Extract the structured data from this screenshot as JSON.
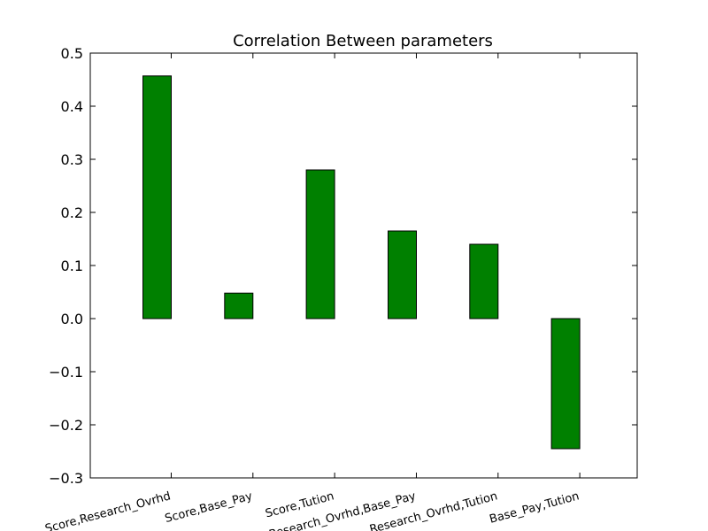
{
  "chart_data": {
    "type": "bar",
    "title": "Correlation Between parameters",
    "xlabel": "",
    "ylabel": "",
    "categories": [
      "Score,Research_Ovrhd",
      "Score,Base_Pay",
      "Score,Tution",
      "Research_Ovrhd,Base_Pay",
      "Research_Ovrhd,Tution",
      "Base_Pay,Tution"
    ],
    "values": [
      0.457,
      0.048,
      0.28,
      0.165,
      0.14,
      -0.245
    ],
    "ylim": [
      -0.3,
      0.5
    ],
    "yticks": [
      0.5,
      0.4,
      0.3,
      0.2,
      0.1,
      0.0,
      -0.1,
      -0.2,
      -0.3
    ],
    "ytick_labels": [
      "0.5",
      "0.4",
      "0.3",
      "0.2",
      "0.1",
      "0.0",
      "−0.1",
      "−0.2",
      "−0.3"
    ],
    "grid": false,
    "bar_color": "#008000",
    "edge_color": "#000000"
  }
}
